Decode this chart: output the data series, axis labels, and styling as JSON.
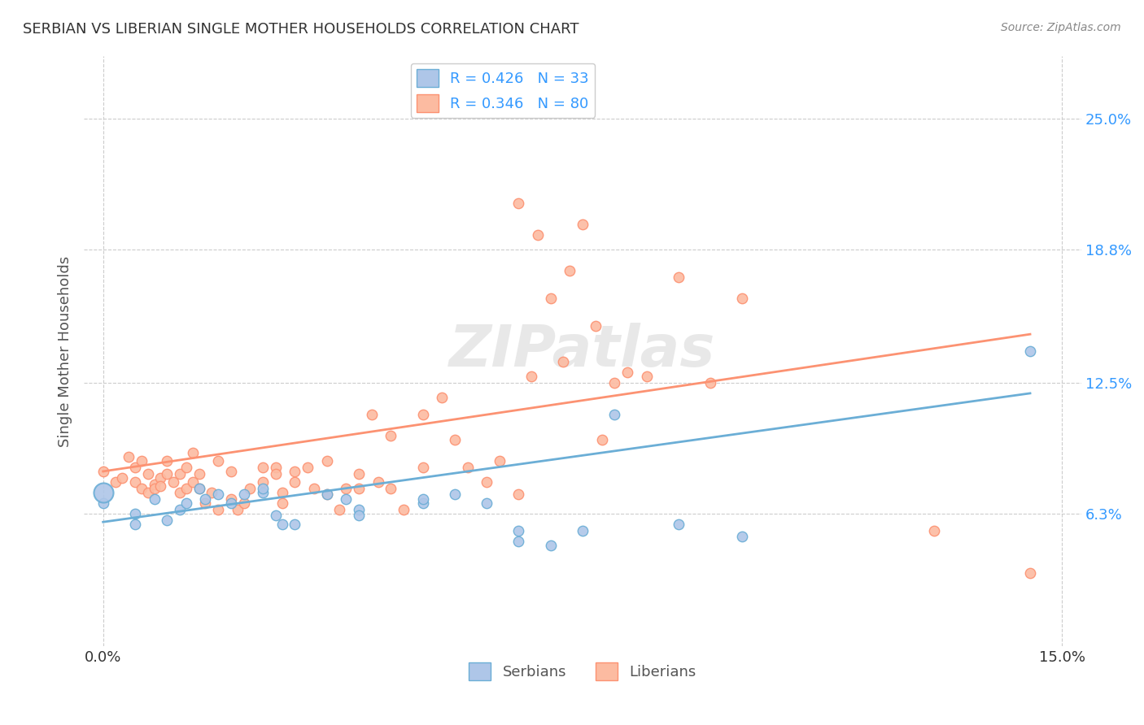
{
  "title": "SERBIAN VS LIBERIAN SINGLE MOTHER HOUSEHOLDS CORRELATION CHART",
  "source": "Source: ZipAtlas.com",
  "xlabel_ticks": [
    "0.0%",
    "15.0%"
  ],
  "ylabel_ticks": [
    "6.3%",
    "12.5%",
    "18.8%",
    "25.0%"
  ],
  "ylabel_label": "Single Mother Households",
  "xlabel_label": "",
  "legend_serbian": "R = 0.426   N = 33",
  "legend_liberian": "R = 0.346   N = 80",
  "legend_label_serbian": "Serbians",
  "legend_label_liberian": "Liberians",
  "serbian_color": "#6baed6",
  "liberian_color": "#fc9272",
  "serbian_color_light": "#aec6e8",
  "liberian_color_light": "#fcbba1",
  "serbian_scatter": [
    [
      0.0,
      0.068
    ],
    [
      0.005,
      0.063
    ],
    [
      0.005,
      0.058
    ],
    [
      0.008,
      0.07
    ],
    [
      0.01,
      0.06
    ],
    [
      0.012,
      0.065
    ],
    [
      0.013,
      0.068
    ],
    [
      0.015,
      0.075
    ],
    [
      0.016,
      0.07
    ],
    [
      0.018,
      0.072
    ],
    [
      0.02,
      0.068
    ],
    [
      0.022,
      0.072
    ],
    [
      0.025,
      0.073
    ],
    [
      0.025,
      0.075
    ],
    [
      0.027,
      0.062
    ],
    [
      0.028,
      0.058
    ],
    [
      0.03,
      0.058
    ],
    [
      0.035,
      0.072
    ],
    [
      0.038,
      0.07
    ],
    [
      0.04,
      0.065
    ],
    [
      0.04,
      0.062
    ],
    [
      0.05,
      0.068
    ],
    [
      0.05,
      0.07
    ],
    [
      0.055,
      0.072
    ],
    [
      0.06,
      0.068
    ],
    [
      0.065,
      0.055
    ],
    [
      0.065,
      0.05
    ],
    [
      0.07,
      0.048
    ],
    [
      0.075,
      0.055
    ],
    [
      0.08,
      0.11
    ],
    [
      0.09,
      0.058
    ],
    [
      0.1,
      0.052
    ],
    [
      0.145,
      0.14
    ]
  ],
  "liberian_scatter": [
    [
      0.0,
      0.083
    ],
    [
      0.002,
      0.078
    ],
    [
      0.003,
      0.08
    ],
    [
      0.004,
      0.09
    ],
    [
      0.005,
      0.085
    ],
    [
      0.005,
      0.078
    ],
    [
      0.006,
      0.075
    ],
    [
      0.006,
      0.088
    ],
    [
      0.007,
      0.073
    ],
    [
      0.007,
      0.082
    ],
    [
      0.008,
      0.077
    ],
    [
      0.008,
      0.075
    ],
    [
      0.009,
      0.08
    ],
    [
      0.009,
      0.076
    ],
    [
      0.01,
      0.088
    ],
    [
      0.01,
      0.082
    ],
    [
      0.011,
      0.078
    ],
    [
      0.012,
      0.073
    ],
    [
      0.012,
      0.082
    ],
    [
      0.013,
      0.075
    ],
    [
      0.013,
      0.085
    ],
    [
      0.014,
      0.092
    ],
    [
      0.014,
      0.078
    ],
    [
      0.015,
      0.082
    ],
    [
      0.015,
      0.075
    ],
    [
      0.016,
      0.068
    ],
    [
      0.017,
      0.073
    ],
    [
      0.018,
      0.088
    ],
    [
      0.018,
      0.065
    ],
    [
      0.02,
      0.083
    ],
    [
      0.02,
      0.07
    ],
    [
      0.021,
      0.065
    ],
    [
      0.022,
      0.068
    ],
    [
      0.023,
      0.075
    ],
    [
      0.025,
      0.078
    ],
    [
      0.025,
      0.085
    ],
    [
      0.027,
      0.085
    ],
    [
      0.027,
      0.082
    ],
    [
      0.028,
      0.073
    ],
    [
      0.028,
      0.068
    ],
    [
      0.03,
      0.083
    ],
    [
      0.03,
      0.078
    ],
    [
      0.032,
      0.085
    ],
    [
      0.033,
      0.075
    ],
    [
      0.035,
      0.088
    ],
    [
      0.035,
      0.072
    ],
    [
      0.037,
      0.065
    ],
    [
      0.038,
      0.075
    ],
    [
      0.04,
      0.082
    ],
    [
      0.04,
      0.075
    ],
    [
      0.042,
      0.11
    ],
    [
      0.043,
      0.078
    ],
    [
      0.045,
      0.075
    ],
    [
      0.045,
      0.1
    ],
    [
      0.047,
      0.065
    ],
    [
      0.05,
      0.085
    ],
    [
      0.05,
      0.11
    ],
    [
      0.053,
      0.118
    ],
    [
      0.055,
      0.098
    ],
    [
      0.057,
      0.085
    ],
    [
      0.06,
      0.078
    ],
    [
      0.062,
      0.088
    ],
    [
      0.065,
      0.072
    ],
    [
      0.065,
      0.21
    ],
    [
      0.067,
      0.128
    ],
    [
      0.068,
      0.195
    ],
    [
      0.07,
      0.165
    ],
    [
      0.072,
      0.135
    ],
    [
      0.073,
      0.178
    ],
    [
      0.075,
      0.2
    ],
    [
      0.077,
      0.152
    ],
    [
      0.078,
      0.098
    ],
    [
      0.08,
      0.125
    ],
    [
      0.082,
      0.13
    ],
    [
      0.085,
      0.128
    ],
    [
      0.09,
      0.175
    ],
    [
      0.095,
      0.125
    ],
    [
      0.1,
      0.165
    ],
    [
      0.13,
      0.055
    ],
    [
      0.145,
      0.035
    ]
  ],
  "serbian_line": [
    [
      0.0,
      0.059
    ],
    [
      0.145,
      0.12
    ]
  ],
  "liberian_line": [
    [
      0.0,
      0.083
    ],
    [
      0.145,
      0.148
    ]
  ],
  "watermark": "ZIPatlas",
  "xlim": [
    0.0,
    0.15
  ],
  "ylim": [
    0.0,
    0.28
  ],
  "ytick_positions": [
    0.063,
    0.125,
    0.188,
    0.25
  ],
  "ytick_labels": [
    "6.3%",
    "12.5%",
    "18.8%",
    "25.0%"
  ],
  "xtick_positions": [
    0.0,
    0.15
  ],
  "xtick_labels": [
    "0.0%",
    "15.0%"
  ],
  "grid_color": "#cccccc",
  "background_color": "#ffffff",
  "serbian_big_dot": [
    0.0,
    0.073
  ],
  "serbian_big_dot_size": 300
}
